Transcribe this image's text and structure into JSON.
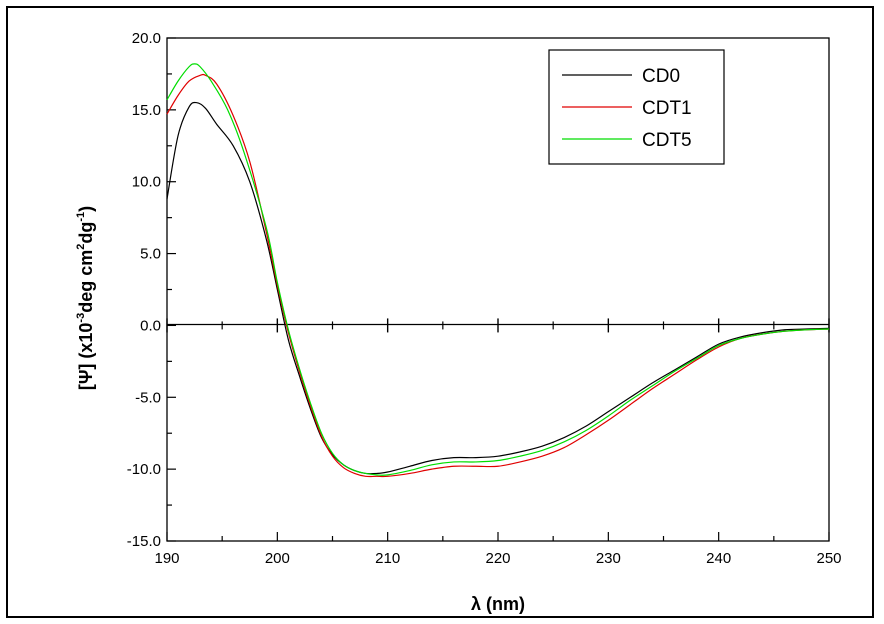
{
  "chart_data": {
    "type": "line",
    "xlabel": "λ (nm)",
    "ylabel_parts": {
      "a": "[Ψ] (x10",
      "b": "-3",
      "c": "deg cm",
      "d": "2",
      "e": "dg",
      "f": "-1",
      "g": ")"
    },
    "xlim": [
      190,
      250
    ],
    "ylim": [
      -15,
      20
    ],
    "x_ticks": [
      190,
      200,
      210,
      220,
      230,
      240,
      250
    ],
    "x_tick_labels": [
      "190",
      "200",
      "210",
      "220",
      "230",
      "240",
      "250"
    ],
    "y_ticks": [
      -15,
      -10,
      -5,
      0,
      5,
      10,
      15,
      20
    ],
    "y_tick_labels": [
      "-15.0",
      "-10.0",
      "-5.0",
      "0.0",
      "5.0",
      "10.0",
      "15.0",
      "20.0"
    ],
    "legend_position": "top-right",
    "series": [
      {
        "name": "CD0",
        "color": "#000000",
        "x": [
          190,
          191,
          192,
          192.7,
          193.5,
          194.5,
          196,
          197.5,
          199,
          200,
          201,
          202,
          203,
          204,
          205,
          206,
          207,
          208,
          209,
          210,
          212,
          214,
          216,
          218,
          220,
          222,
          224,
          226,
          228,
          230,
          232,
          234,
          236,
          238,
          240,
          242,
          244,
          246,
          248,
          250
        ],
        "y": [
          8.8,
          13.2,
          15.2,
          15.5,
          15.1,
          14.0,
          12.5,
          10.0,
          6.0,
          2.5,
          -1.0,
          -3.5,
          -5.8,
          -7.8,
          -9.0,
          -9.7,
          -10.1,
          -10.3,
          -10.3,
          -10.2,
          -9.8,
          -9.4,
          -9.2,
          -9.2,
          -9.1,
          -8.8,
          -8.4,
          -7.8,
          -7.0,
          -6.0,
          -5.0,
          -4.0,
          -3.1,
          -2.2,
          -1.3,
          -0.8,
          -0.5,
          -0.3,
          -0.25,
          -0.2
        ]
      },
      {
        "name": "CDT1",
        "color": "#e00000",
        "x": [
          190,
          191,
          192,
          193,
          193.5,
          194.5,
          196,
          197.5,
          199,
          200,
          201,
          202,
          203,
          204,
          205,
          206,
          207,
          208,
          209,
          210,
          212,
          214,
          216,
          218,
          220,
          222,
          224,
          226,
          228,
          230,
          232,
          234,
          236,
          238,
          240,
          242,
          244,
          246,
          248,
          250
        ],
        "y": [
          14.7,
          16.0,
          17.0,
          17.4,
          17.4,
          16.8,
          14.6,
          11.4,
          6.5,
          2.8,
          -0.5,
          -3.2,
          -5.6,
          -7.7,
          -9.1,
          -9.9,
          -10.3,
          -10.5,
          -10.5,
          -10.5,
          -10.3,
          -10.0,
          -9.8,
          -9.8,
          -9.8,
          -9.5,
          -9.1,
          -8.5,
          -7.6,
          -6.6,
          -5.5,
          -4.4,
          -3.4,
          -2.4,
          -1.5,
          -0.9,
          -0.6,
          -0.4,
          -0.3,
          -0.25
        ]
      },
      {
        "name": "CDT5",
        "color": "#00dd00",
        "x": [
          190,
          191,
          192,
          192.5,
          193,
          194,
          195.5,
          197,
          199,
          200,
          201,
          202,
          203,
          204,
          205,
          206,
          207,
          208,
          209,
          210,
          212,
          214,
          216,
          218,
          220,
          222,
          224,
          226,
          228,
          230,
          232,
          234,
          236,
          238,
          240,
          242,
          244,
          246,
          248,
          250
        ],
        "y": [
          15.7,
          17.0,
          18.0,
          18.2,
          18.0,
          17.0,
          15.0,
          12.0,
          6.8,
          3.0,
          -0.3,
          -3.0,
          -5.4,
          -7.5,
          -8.9,
          -9.7,
          -10.1,
          -10.3,
          -10.4,
          -10.4,
          -10.1,
          -9.7,
          -9.5,
          -9.5,
          -9.4,
          -9.1,
          -8.7,
          -8.1,
          -7.3,
          -6.3,
          -5.2,
          -4.2,
          -3.2,
          -2.3,
          -1.4,
          -0.9,
          -0.6,
          -0.4,
          -0.3,
          -0.25
        ]
      }
    ]
  }
}
